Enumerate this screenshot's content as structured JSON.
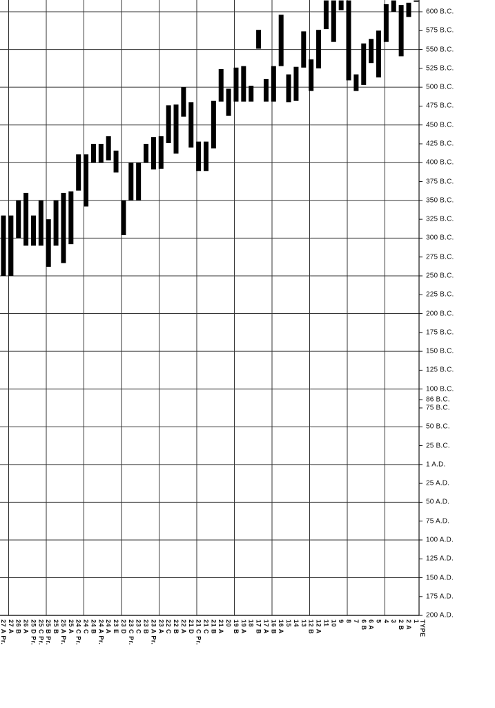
{
  "chart_data": {
    "type": "bar",
    "subtype": "floating-range",
    "title": "",
    "xlabel": "TYPE",
    "ylabel": "",
    "y_axis_position": "right",
    "y_direction": "earlier dates at top",
    "ylim": [
      -615,
      200
    ],
    "grid": true,
    "bar_color": "#000000",
    "grid_color": "#333333",
    "y_ticks": [
      {
        "value": -600,
        "label": "600 B.C."
      },
      {
        "value": -575,
        "label": "575 B.C."
      },
      {
        "value": -550,
        "label": "550 B.C."
      },
      {
        "value": -525,
        "label": "525 B.C."
      },
      {
        "value": -500,
        "label": "500 B.C."
      },
      {
        "value": -475,
        "label": "475 B.C."
      },
      {
        "value": -450,
        "label": "450 B.C."
      },
      {
        "value": -425,
        "label": "425 B.C."
      },
      {
        "value": -400,
        "label": "400 B.C."
      },
      {
        "value": -375,
        "label": "375 B.C."
      },
      {
        "value": -350,
        "label": "350 B.C."
      },
      {
        "value": -325,
        "label": "325 B.C."
      },
      {
        "value": -300,
        "label": "300 B.C."
      },
      {
        "value": -275,
        "label": "275 B.C."
      },
      {
        "value": -250,
        "label": "250 B.C."
      },
      {
        "value": -225,
        "label": "225 B.C."
      },
      {
        "value": -200,
        "label": "200 B.C."
      },
      {
        "value": -175,
        "label": "175 B.C."
      },
      {
        "value": -150,
        "label": "150 B.C."
      },
      {
        "value": -125,
        "label": "125 B.C."
      },
      {
        "value": -100,
        "label": "100 B.C."
      },
      {
        "value": -86,
        "label": "86 B.C."
      },
      {
        "value": -75,
        "label": "75 B.C."
      },
      {
        "value": -50,
        "label": "50 B.C."
      },
      {
        "value": -25,
        "label": "25 B.C."
      },
      {
        "value": 0,
        "label": "1 A.D."
      },
      {
        "value": 25,
        "label": "25 A.D."
      },
      {
        "value": 50,
        "label": "50 A.D."
      },
      {
        "value": 75,
        "label": "75 A.D."
      },
      {
        "value": 100,
        "label": "100 A.D."
      },
      {
        "value": 125,
        "label": "125 A.D."
      },
      {
        "value": 150,
        "label": "150 A.D."
      },
      {
        "value": 175,
        "label": "175 A.D."
      },
      {
        "value": 200,
        "label": "200 A.D."
      }
    ],
    "categories": [
      "27 A Pr.",
      "27 A",
      "26 B",
      "26 A",
      "25 D Pr.",
      "25 C Pr.",
      "25 B Pr.",
      "25 B",
      "25 A Pr.",
      "25 A",
      "24 C Pr.",
      "24 C",
      "24 B",
      "24 A Pr.",
      "24 A",
      "23 E",
      "23 D",
      "23 C Pr.",
      "23 C",
      "23 B",
      "23 A Pr.",
      "23 A",
      "22 C",
      "22 B",
      "22 A",
      "21 D",
      "21 C Pr.",
      "21 C",
      "21 B",
      "21 A",
      "20",
      "19 B",
      "19 A",
      "18",
      "17 B",
      "17 A",
      "16 B",
      "16 A",
      "15",
      "14",
      "13",
      "12 B",
      "12 A",
      "11",
      "10",
      "9",
      "8",
      "7",
      "6 B",
      "6 A",
      "5",
      "4",
      "3",
      "2 B",
      "2 A",
      "1"
    ],
    "ranges": [
      [
        -330,
        -250
      ],
      [
        -330,
        -250
      ],
      [
        -350,
        -300
      ],
      [
        -360,
        -290
      ],
      [
        -330,
        -290
      ],
      [
        -350,
        -290
      ],
      [
        -325,
        -262
      ],
      [
        -350,
        -290
      ],
      [
        -360,
        -267
      ],
      [
        -362,
        -292
      ],
      [
        -411,
        -363
      ],
      [
        -411,
        -342
      ],
      [
        -425,
        -400
      ],
      [
        -425,
        -400
      ],
      [
        -435,
        -403
      ],
      [
        -416,
        -387
      ],
      [
        -350,
        -304
      ],
      [
        -400,
        -350
      ],
      [
        -400,
        -350
      ],
      [
        -425,
        -400
      ],
      [
        -434,
        -391
      ],
      [
        -435,
        -392
      ],
      [
        -476,
        -426
      ],
      [
        -477,
        -412
      ],
      [
        -500,
        -461
      ],
      [
        -480,
        -420
      ],
      [
        -428,
        -389
      ],
      [
        -428,
        -389
      ],
      [
        -482,
        -419
      ],
      [
        -524,
        -481
      ],
      [
        -498,
        -462
      ],
      [
        -526,
        -481
      ],
      [
        -528,
        -481
      ],
      [
        -502,
        -481
      ],
      [
        -576,
        -551
      ],
      [
        -511,
        -481
      ],
      [
        -528,
        -481
      ],
      [
        -596,
        -528
      ],
      [
        -517,
        -480
      ],
      [
        -527,
        -482
      ],
      [
        -574,
        -526
      ],
      [
        -537,
        -495
      ],
      [
        -576,
        -525
      ],
      [
        -615,
        -577
      ],
      [
        -615,
        -560
      ],
      [
        -615,
        -602
      ],
      [
        -615,
        -509
      ],
      [
        -517,
        -495
      ],
      [
        -558,
        -503
      ],
      [
        -564,
        -532
      ],
      [
        -575,
        -513
      ],
      [
        -610,
        -560
      ],
      [
        -615,
        -600
      ],
      [
        -609,
        -541
      ],
      [
        -612,
        -593
      ],
      [
        -615,
        -614
      ]
    ]
  }
}
